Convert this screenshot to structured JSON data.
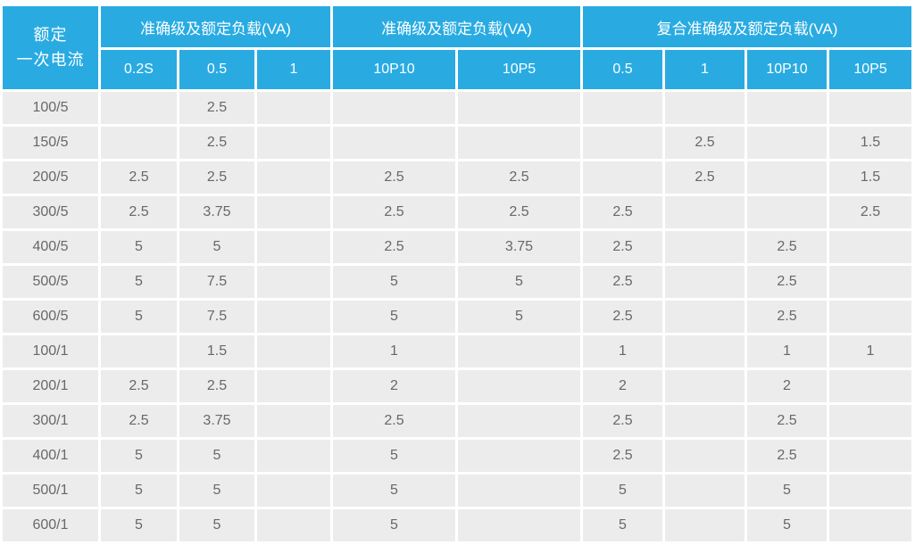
{
  "chart_data": {
    "type": "table",
    "corner_header": [
      "额定",
      "一次电流"
    ],
    "column_groups": [
      {
        "label": "准确级及额定负载(VA)",
        "subcolumns": [
          "0.2S",
          "0.5",
          "1"
        ]
      },
      {
        "label": "准确级及额定负载(VA)",
        "subcolumns": [
          "10P10",
          "10P5"
        ]
      },
      {
        "label": "复合准确级及额定负载(VA)",
        "subcolumns": [
          "0.5",
          "1",
          "10P10",
          "10P5"
        ]
      }
    ],
    "rows": [
      {
        "label": "100/5",
        "values": [
          "",
          "2.5",
          "",
          "",
          "",
          "",
          "",
          "",
          ""
        ]
      },
      {
        "label": "150/5",
        "values": [
          "",
          "2.5",
          "",
          "",
          "",
          "",
          "2.5",
          "",
          "1.5"
        ]
      },
      {
        "label": "200/5",
        "values": [
          "2.5",
          "2.5",
          "",
          "2.5",
          "2.5",
          "",
          "2.5",
          "",
          "1.5"
        ]
      },
      {
        "label": "300/5",
        "values": [
          "2.5",
          "3.75",
          "",
          "2.5",
          "2.5",
          "2.5",
          "",
          "",
          "2.5"
        ]
      },
      {
        "label": "400/5",
        "values": [
          "5",
          "5",
          "",
          "2.5",
          "3.75",
          "2.5",
          "",
          "2.5",
          ""
        ]
      },
      {
        "label": "500/5",
        "values": [
          "5",
          "7.5",
          "",
          "5",
          "5",
          "2.5",
          "",
          "2.5",
          ""
        ]
      },
      {
        "label": "600/5",
        "values": [
          "5",
          "7.5",
          "",
          "5",
          "5",
          "2.5",
          "",
          "2.5",
          ""
        ]
      },
      {
        "label": "100/1",
        "values": [
          "",
          "1.5",
          "",
          "1",
          "",
          "1",
          "",
          "1",
          "1"
        ]
      },
      {
        "label": "200/1",
        "values": [
          "2.5",
          "2.5",
          "",
          "2",
          "",
          "2",
          "",
          "2",
          ""
        ]
      },
      {
        "label": "300/1",
        "values": [
          "2.5",
          "3.75",
          "",
          "2.5",
          "",
          "2.5",
          "",
          "2.5",
          ""
        ]
      },
      {
        "label": "400/1",
        "values": [
          "5",
          "5",
          "",
          "5",
          "",
          "2.5",
          "",
          "2.5",
          ""
        ]
      },
      {
        "label": "500/1",
        "values": [
          "5",
          "5",
          "",
          "5",
          "",
          "5",
          "",
          "5",
          ""
        ]
      },
      {
        "label": "600/1",
        "values": [
          "5",
          "5",
          "",
          "5",
          "",
          "5",
          "",
          "5",
          ""
        ]
      }
    ]
  },
  "colors": {
    "header_bg": "#29ABE2",
    "header_text": "#FFFFFF",
    "cell_bg": "#ECECEC",
    "cell_text": "#686868",
    "gap": "#FFFFFF"
  }
}
